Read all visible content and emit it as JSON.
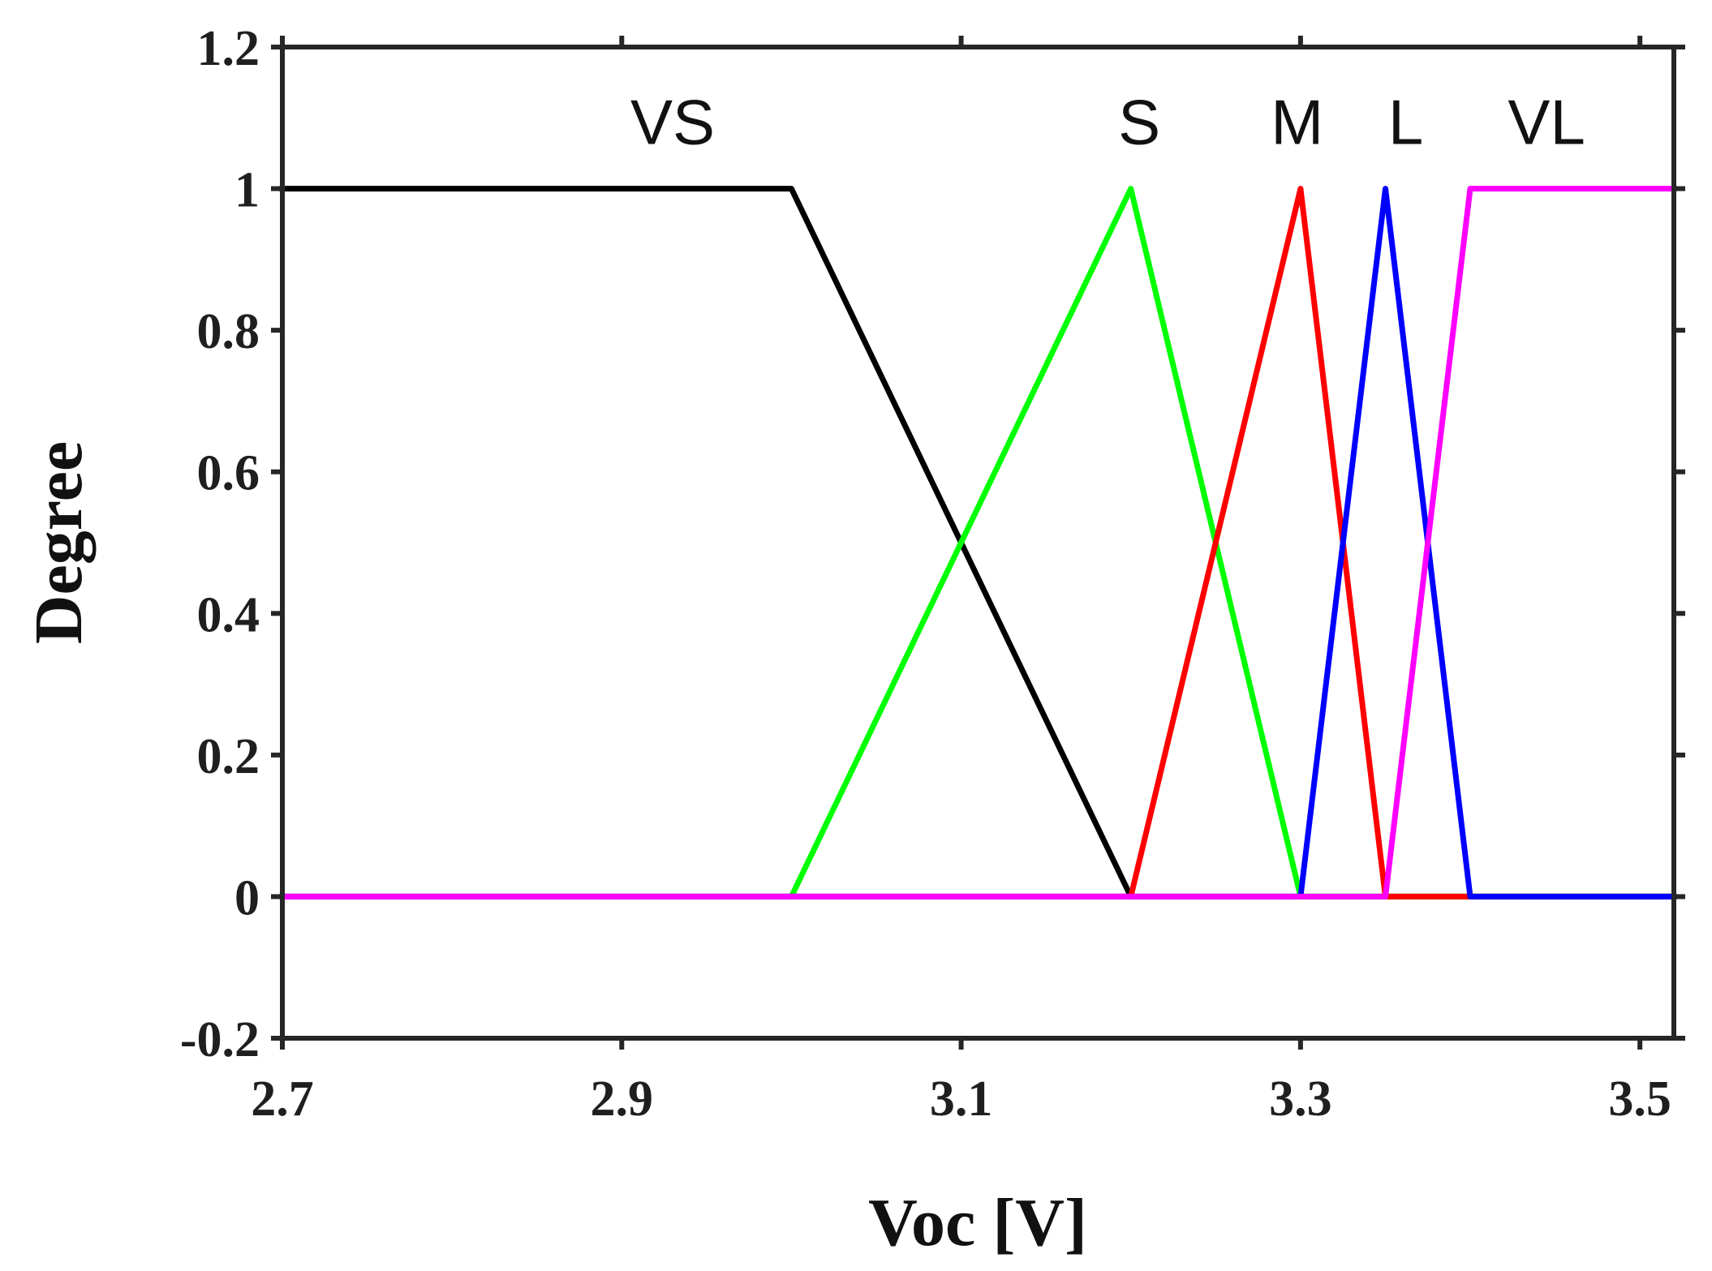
{
  "chart_data": {
    "type": "line",
    "title": "",
    "xlabel": "Voc [V]",
    "ylabel": "Degree",
    "xlim": [
      2.7,
      3.52
    ],
    "ylim": [
      -0.2,
      1.2
    ],
    "x_ticks": [
      "2.7",
      "2.9",
      "3.1",
      "3.3",
      "3.5"
    ],
    "x_tick_values": [
      2.7,
      2.9,
      3.1,
      3.3,
      3.5
    ],
    "y_ticks": [
      "-0.2",
      "0",
      "0.2",
      "0.4",
      "0.6",
      "0.8",
      "1",
      "1.2"
    ],
    "y_tick_values": [
      -0.2,
      0,
      0.2,
      0.4,
      0.6,
      0.8,
      1,
      1.2
    ],
    "grid": false,
    "legend": "none",
    "series": [
      {
        "name": "VS",
        "color": "#000000",
        "points": [
          [
            2.7,
            1
          ],
          [
            3.0,
            1
          ],
          [
            3.2,
            0
          ],
          [
            3.52,
            0
          ]
        ]
      },
      {
        "name": "S",
        "color": "#00ff00",
        "points": [
          [
            2.7,
            0
          ],
          [
            3.0,
            0
          ],
          [
            3.2,
            1
          ],
          [
            3.3,
            0
          ],
          [
            3.52,
            0
          ]
        ]
      },
      {
        "name": "M",
        "color": "#ff0000",
        "points": [
          [
            2.7,
            0
          ],
          [
            3.2,
            0
          ],
          [
            3.3,
            1
          ],
          [
            3.35,
            0
          ],
          [
            3.52,
            0
          ]
        ]
      },
      {
        "name": "L",
        "color": "#0000ff",
        "points": [
          [
            2.7,
            0
          ],
          [
            3.3,
            0
          ],
          [
            3.35,
            1
          ],
          [
            3.4,
            0
          ],
          [
            3.52,
            0
          ]
        ]
      },
      {
        "name": "VL",
        "color": "#ff00ff",
        "points": [
          [
            2.7,
            0
          ],
          [
            3.35,
            0
          ],
          [
            3.4,
            1
          ],
          [
            3.52,
            1
          ]
        ]
      }
    ],
    "series_labels": [
      {
        "text": "VS",
        "x": 2.93,
        "y": 1.095
      },
      {
        "text": "S",
        "x": 3.205,
        "y": 1.095
      },
      {
        "text": "M",
        "x": 3.298,
        "y": 1.095
      },
      {
        "text": "L",
        "x": 3.362,
        "y": 1.095
      },
      {
        "text": "VL",
        "x": 3.445,
        "y": 1.095
      }
    ]
  }
}
